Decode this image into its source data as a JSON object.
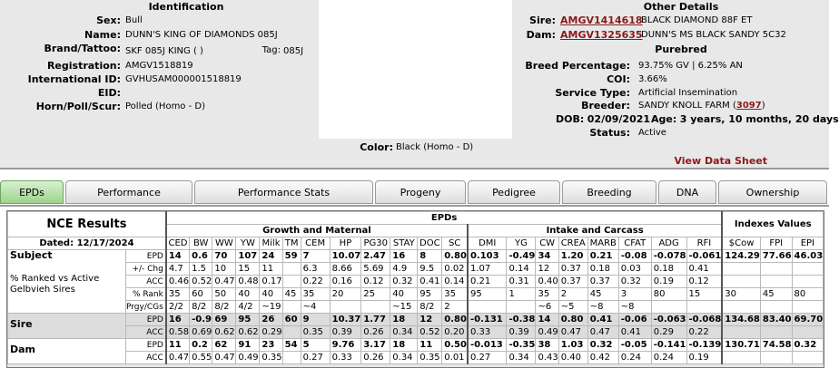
{
  "identification": {
    "title": "Identification",
    "fields": [
      {
        "label": "Sex:",
        "value": "Bull"
      },
      {
        "label": "Name:",
        "value": "DUNN'S KING OF DIAMONDS 085J"
      },
      {
        "label": "Brand/Tattoo:",
        "value": "SKF 085J KING ( )"
      },
      {
        "label": "Registration:",
        "value": "AMGV1518819"
      },
      {
        "label": "International ID:",
        "value": "GVHUSAM000001518819"
      },
      {
        "label": "EID:",
        "value": ""
      },
      {
        "label": "Horn/Poll/Scur:",
        "value": "Polled (Homo - D)"
      }
    ],
    "tag_label": "Tag:",
    "tag_value": "085J",
    "color_label": "Color:",
    "color_value": "Black (Homo - D)"
  },
  "other_details": {
    "title": "Other Details",
    "sire_label": "Sire:",
    "sire_link": "AMGV1414618",
    "sire_name": "BLACK DIAMOND 88F ET",
    "dam_label": "Dam:",
    "dam_link": "AMGV1325635",
    "dam_name": "DUNN'S MS BLACK SANDY 5C32",
    "purebred": "Purebred",
    "breed_pct_label": "Breed Percentage:",
    "breed_pct": "93.75% GV | 6.25% AN",
    "coi_label": "COI:",
    "coi": "3.66%",
    "service_label": "Service Type:",
    "service": "Artificial Insemination",
    "breeder_label": "Breeder:",
    "breeder": "SANDY KNOLL FARM (",
    "breeder_link": "3097",
    "breeder_close": ")",
    "dob_label": "DOB:",
    "dob": "02/09/2021",
    "age_label": "Age:",
    "age": "3 years, 10 months, 20 days",
    "status_label": "Status:",
    "status": "Active",
    "view_sheet": "View Data Sheet"
  },
  "tabs": [
    "EPDs",
    "Performance",
    "Performance Stats",
    "Progeny",
    "Pedigree",
    "Breeding",
    "DNA",
    "Ownership"
  ],
  "nce": {
    "title": "NCE Results",
    "dated": "Dated: 12/17/2024",
    "epds_header": "EPDs",
    "growth_header": "Growth and Maternal",
    "intake_header": "Intake and Carcass",
    "indexes_header": "Indexes Values",
    "columns": [
      "CED",
      "BW",
      "WW",
      "YW",
      "Milk",
      "TM",
      "CEM",
      "HP",
      "PG30",
      "STAY",
      "DOC",
      "SC",
      "DMI",
      "YG",
      "CW",
      "CREA",
      "MARB",
      "CFAT",
      "ADG",
      "RFI",
      "$Cow",
      "FPI",
      "EPI"
    ],
    "subject_label": "Subject",
    "ranked_label": "% Ranked vs Active Gelbvieh Sires",
    "row_labels": [
      "EPD",
      "+/- Chg",
      "ACC",
      "% Rank",
      "Prgy/CGs"
    ],
    "subject": {
      "epd": [
        "14",
        "0.6",
        "70",
        "107",
        "24",
        "59",
        "7",
        "10.07",
        "2.47",
        "16",
        "8",
        "0.80",
        "0.103",
        "-0.49",
        "34",
        "1.20",
        "0.21",
        "-0.08",
        "-0.078",
        "-0.061",
        "124.29",
        "77.66",
        "46.03"
      ],
      "chg": [
        "4.7",
        "1.5",
        "10",
        "15",
        "11",
        "",
        "6.3",
        "8.66",
        "5.69",
        "4.9",
        "9.5",
        "0.02",
        "1.07",
        "0.14",
        "12",
        "0.37",
        "0.18",
        "0.03",
        "0.18",
        "0.41",
        "",
        "",
        ""
      ],
      "acc": [
        "0.46",
        "0.52",
        "0.47",
        "0.48",
        "0.17",
        "",
        "0.22",
        "0.16",
        "0.12",
        "0.32",
        "0.41",
        "0.14",
        "0.21",
        "0.31",
        "0.40",
        "0.37",
        "0.37",
        "0.32",
        "0.19",
        "0.12",
        "",
        "",
        ""
      ],
      "rank": [
        "35",
        "60",
        "50",
        "40",
        "40",
        "45",
        "35",
        "20",
        "25",
        "40",
        "95",
        "35",
        "95",
        "1",
        "35",
        "2",
        "45",
        "3",
        "80",
        "15",
        "30",
        "45",
        "80"
      ],
      "prgy": [
        "2/2",
        "8/2",
        "8/2",
        "4/2",
        "~19",
        "",
        "~4",
        "",
        "",
        "~15",
        "8/2",
        "2",
        "",
        "",
        "~6",
        "~5",
        "~8",
        "~8",
        "",
        "",
        "",
        "",
        ""
      ]
    },
    "sire_label": "Sire",
    "sire": {
      "epd": [
        "16",
        "-0.9",
        "69",
        "95",
        "26",
        "60",
        "9",
        "10.37",
        "1.77",
        "18",
        "12",
        "0.80",
        "-0.131",
        "-0.38",
        "14",
        "0.80",
        "0.41",
        "-0.06",
        "-0.063",
        "-0.068",
        "134.68",
        "83.40",
        "69.70"
      ],
      "acc": [
        "0.58",
        "0.69",
        "0.62",
        "0.62",
        "0.29",
        "",
        "0.35",
        "0.39",
        "0.26",
        "0.34",
        "0.52",
        "0.20",
        "0.33",
        "0.39",
        "0.49",
        "0.47",
        "0.47",
        "0.41",
        "0.29",
        "0.22",
        "",
        "",
        ""
      ]
    },
    "dam_label": "Dam",
    "dam": {
      "epd": [
        "11",
        "0.2",
        "62",
        "91",
        "23",
        "54",
        "5",
        "9.76",
        "3.17",
        "18",
        "11",
        "0.50",
        "-0.013",
        "-0.35",
        "38",
        "1.03",
        "0.32",
        "-0.05",
        "-0.141",
        "-0.139",
        "130.71",
        "74.58",
        "0.32"
      ],
      "acc": [
        "0.47",
        "0.55",
        "0.47",
        "0.49",
        "0.35",
        "",
        "0.27",
        "0.33",
        "0.26",
        "0.34",
        "0.35",
        "0.01",
        "0.27",
        "0.34",
        "0.43",
        "0.40",
        "0.42",
        "0.24",
        "0.24",
        "0.19",
        "",
        "",
        ""
      ]
    },
    "highlight_subject": [
      0,
      1,
      2,
      3,
      4,
      5,
      6,
      9,
      10,
      13,
      14,
      15,
      16,
      17
    ],
    "highlight_sire": [
      0,
      1,
      2,
      3,
      4,
      5,
      6,
      9,
      10,
      11,
      13,
      14,
      15,
      16,
      17
    ],
    "highlight_dam": [
      0,
      1,
      2,
      3,
      4,
      5,
      6,
      9,
      10,
      11,
      13,
      14,
      15,
      16,
      17
    ]
  }
}
